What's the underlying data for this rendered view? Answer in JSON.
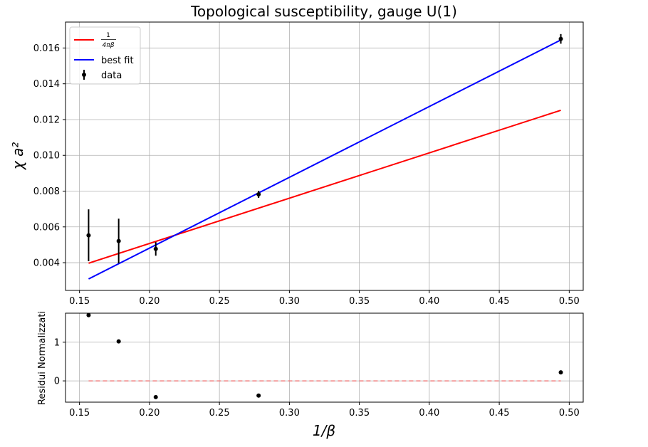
{
  "chart_data": [
    {
      "type": "line",
      "title": "Topological susceptibility, gauge U(1)",
      "xlabel": "1/β",
      "ylabel": "χ a²",
      "xlim": [
        0.14,
        0.51
      ],
      "ylim": [
        0.00245,
        0.01745
      ],
      "xticks": [
        0.15,
        0.2,
        0.25,
        0.3,
        0.35,
        0.4,
        0.45,
        0.5
      ],
      "xtick_labels": [
        "0.15",
        "0.20",
        "0.25",
        "0.30",
        "0.35",
        "0.40",
        "0.45",
        "0.50"
      ],
      "yticks": [
        0.004,
        0.006,
        0.008,
        0.01,
        0.012,
        0.014,
        0.016
      ],
      "ytick_labels": [
        "0.004",
        "0.006",
        "0.008",
        "0.010",
        "0.012",
        "0.014",
        "0.016"
      ],
      "grid": true,
      "legend": "top-left",
      "series": [
        {
          "name": "1/(4πβ)",
          "name_numerator": "1",
          "name_denominator": "4πβ",
          "kind": "line",
          "color": "#ff0000",
          "x": [
            0.1565,
            0.494
          ],
          "y": [
            0.00397,
            0.01252
          ]
        },
        {
          "name": "best fit",
          "kind": "line",
          "color": "#0000ff",
          "x": [
            0.1565,
            0.494
          ],
          "y": [
            0.00309,
            0.01645
          ]
        },
        {
          "name": "data",
          "kind": "errorbar",
          "color": "#000000",
          "x": [
            0.1565,
            0.178,
            0.2045,
            0.278,
            0.494
          ],
          "y": [
            0.00553,
            0.00521,
            0.00477,
            0.00782,
            0.01651
          ],
          "yerr": [
            0.00145,
            0.00125,
            0.00038,
            0.0002,
            0.00027
          ]
        }
      ]
    },
    {
      "type": "scatter",
      "xlabel": "1/β",
      "ylabel": "Residui Normalizzati",
      "xlim": [
        0.14,
        0.51
      ],
      "ylim": [
        -0.55,
        1.75
      ],
      "xticks": [
        0.15,
        0.2,
        0.25,
        0.3,
        0.35,
        0.4,
        0.45,
        0.5
      ],
      "xtick_labels": [
        "0.15",
        "0.20",
        "0.25",
        "0.30",
        "0.35",
        "0.40",
        "0.45",
        "0.50"
      ],
      "yticks": [
        0,
        1
      ],
      "ytick_labels": [
        "0",
        "1"
      ],
      "grid": true,
      "series": [
        {
          "kind": "points",
          "color": "#000000",
          "x": [
            0.1565,
            0.178,
            0.2045,
            0.278,
            0.494
          ],
          "y": [
            1.7,
            1.02,
            -0.42,
            -0.38,
            0.22
          ]
        },
        {
          "kind": "zero-line",
          "color": "#f08080",
          "x": [
            0.1565,
            0.494
          ],
          "y": [
            0,
            0
          ]
        }
      ]
    }
  ]
}
